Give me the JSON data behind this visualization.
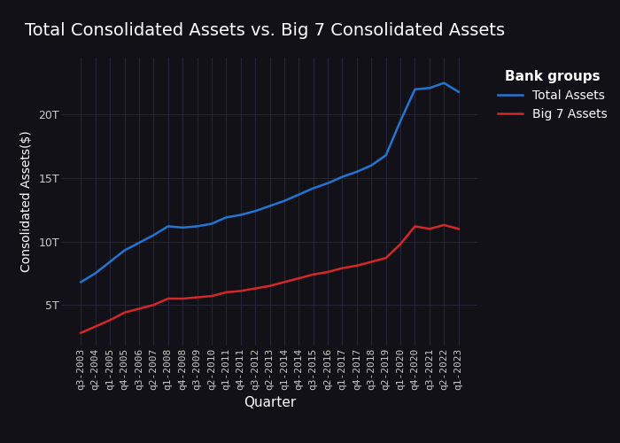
{
  "title": "Total Consolidated Assets vs. Big 7 Consolidated Assets",
  "xlabel": "Quarter",
  "ylabel": "Consolidated Assets($)",
  "legend_title": "Bank groups",
  "legend_labels": [
    "Total Assets",
    "Big 7 Assets"
  ],
  "line_colors": [
    "#2176d4",
    "#d62728"
  ],
  "bg_color": "#111117",
  "grid_color": "#2a2a3e",
  "text_color": "#ffffff",
  "tick_color": "#cccccc",
  "quarters": [
    "q3-2003",
    "q2-2004",
    "q1-2005",
    "q4-2005",
    "q3-2006",
    "q2-2007",
    "q1-2008",
    "q4-2008",
    "q3-2009",
    "q2-2010",
    "q1-2011",
    "q4-2011",
    "q3-2012",
    "q2-2013",
    "q1-2014",
    "q4-2014",
    "q3-2015",
    "q2-2016",
    "q1-2017",
    "q4-2017",
    "q3-2018",
    "q2-2019",
    "q1-2020",
    "q4-2020",
    "q3-2021",
    "q2-2022",
    "q1-2023"
  ],
  "total_assets": [
    6.8,
    7.5,
    8.4,
    9.3,
    9.9,
    10.5,
    11.2,
    11.1,
    11.2,
    11.4,
    11.9,
    12.1,
    12.4,
    12.8,
    13.2,
    13.7,
    14.2,
    14.6,
    15.1,
    15.5,
    16.0,
    16.8,
    19.5,
    22.0,
    22.1,
    22.5,
    21.8
  ],
  "big7_assets": [
    2.8,
    3.3,
    3.8,
    4.4,
    4.7,
    5.0,
    5.5,
    5.5,
    5.6,
    5.7,
    6.0,
    6.1,
    6.3,
    6.5,
    6.8,
    7.1,
    7.4,
    7.6,
    7.9,
    8.1,
    8.4,
    8.7,
    9.8,
    11.2,
    11.0,
    11.3,
    11.0
  ],
  "yticks": [
    5,
    10,
    15,
    20
  ],
  "ytick_labels": [
    "5T",
    "10T",
    "15T",
    "20T"
  ],
  "ylim": [
    1.8,
    24.5
  ],
  "title_fontsize": 14,
  "axis_label_fontsize": 11,
  "tick_fontsize": 8,
  "legend_fontsize": 10,
  "legend_title_fontsize": 11
}
